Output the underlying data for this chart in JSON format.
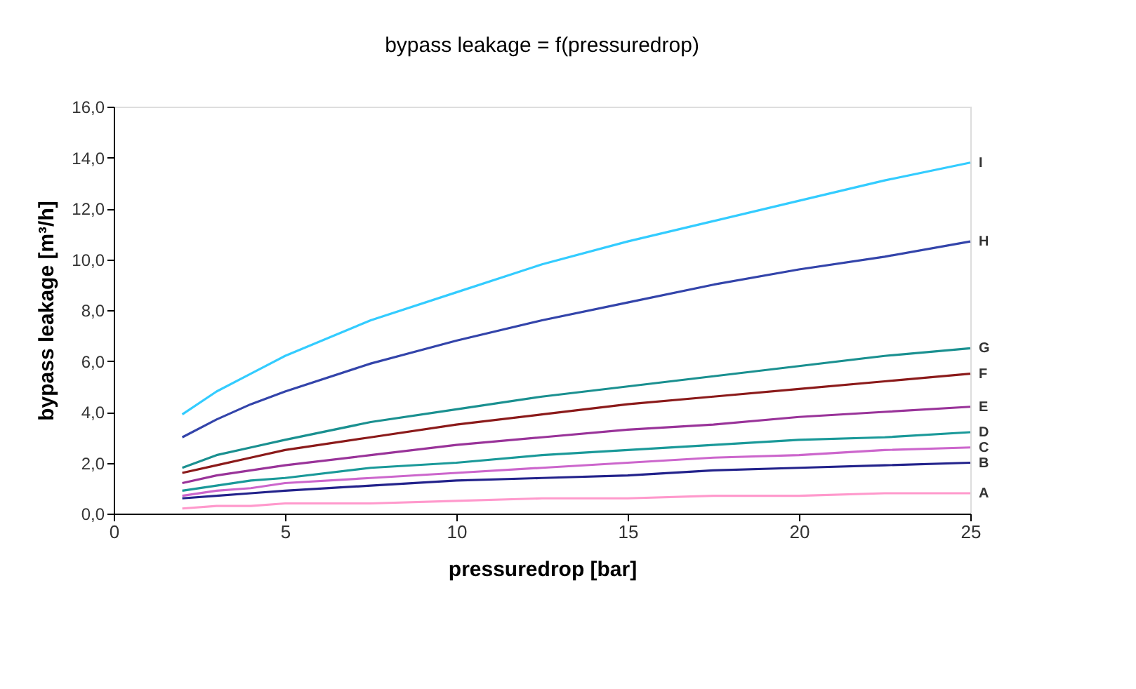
{
  "chart_data": {
    "type": "line",
    "title": "bypass leakage =  f(pressuredrop)",
    "xlabel": "pressuredrop [bar]",
    "ylabel": "bypass leakage [m³/h]",
    "xlim": [
      0,
      25
    ],
    "xticks": [
      0,
      5,
      10,
      15,
      20,
      25
    ],
    "ylim": [
      0,
      16
    ],
    "yticks": [
      {
        "value": 0,
        "label": "0,0"
      },
      {
        "value": 2,
        "label": "2,0"
      },
      {
        "value": 4,
        "label": "4,0"
      },
      {
        "value": 6,
        "label": "6,0"
      },
      {
        "value": 8,
        "label": "8,0"
      },
      {
        "value": 10,
        "label": "10,0"
      },
      {
        "value": 12,
        "label": "12,0"
      },
      {
        "value": 14,
        "label": "14,0"
      },
      {
        "value": 16,
        "label": "16,0"
      }
    ],
    "grid": false,
    "legend": false,
    "marker": "none",
    "line_style": "solid",
    "x": [
      2,
      3,
      4,
      5,
      7.5,
      10,
      12.5,
      15,
      17.5,
      20,
      22.5,
      25
    ],
    "series": [
      {
        "name": "I",
        "color": "#33ccff",
        "values": [
          3.9,
          4.8,
          5.5,
          6.2,
          7.6,
          8.7,
          9.8,
          10.7,
          11.5,
          12.3,
          13.1,
          13.8
        ]
      },
      {
        "name": "H",
        "color": "#3344aa",
        "values": [
          3.0,
          3.7,
          4.3,
          4.8,
          5.9,
          6.8,
          7.6,
          8.3,
          9.0,
          9.6,
          10.1,
          10.7
        ]
      },
      {
        "name": "G",
        "color": "#1a9090",
        "values": [
          1.8,
          2.3,
          2.6,
          2.9,
          3.6,
          4.1,
          4.6,
          5.0,
          5.4,
          5.8,
          6.2,
          6.5
        ]
      },
      {
        "name": "F",
        "color": "#8b1a1a",
        "values": [
          1.6,
          1.9,
          2.2,
          2.5,
          3.0,
          3.5,
          3.9,
          4.3,
          4.6,
          4.9,
          5.2,
          5.5
        ]
      },
      {
        "name": "E",
        "color": "#993399",
        "values": [
          1.2,
          1.5,
          1.7,
          1.9,
          2.3,
          2.7,
          3.0,
          3.3,
          3.5,
          3.8,
          4.0,
          4.2
        ]
      },
      {
        "name": "D",
        "color": "#1a9999",
        "values": [
          0.9,
          1.1,
          1.3,
          1.4,
          1.8,
          2.0,
          2.3,
          2.5,
          2.7,
          2.9,
          3.0,
          3.2
        ]
      },
      {
        "name": "C",
        "color": "#cc66cc",
        "values": [
          0.7,
          0.9,
          1.0,
          1.2,
          1.4,
          1.6,
          1.8,
          2.0,
          2.2,
          2.3,
          2.5,
          2.6
        ]
      },
      {
        "name": "B",
        "color": "#22228b",
        "values": [
          0.6,
          0.7,
          0.8,
          0.9,
          1.1,
          1.3,
          1.4,
          1.5,
          1.7,
          1.8,
          1.9,
          2.0
        ]
      },
      {
        "name": "A",
        "color": "#ff99cc",
        "values": [
          0.2,
          0.3,
          0.3,
          0.4,
          0.4,
          0.5,
          0.6,
          0.6,
          0.7,
          0.7,
          0.8,
          0.8
        ]
      }
    ]
  }
}
